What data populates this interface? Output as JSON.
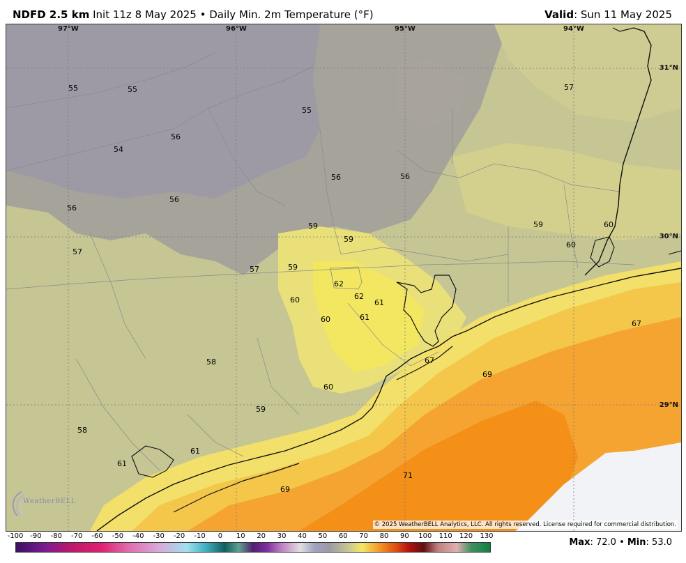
{
  "header": {
    "title_bold": "NDFD 2.5 km",
    "title_rest": " Init 11z 8 May 2025 • Daily Min. 2m Temperature (°F)",
    "valid_label": "Valid",
    "valid_value": ": Sun 11 May 2025"
  },
  "map": {
    "longitude_labels": [
      "97°W",
      "96°W",
      "95°W",
      "94°W"
    ],
    "latitude_labels": [
      "31°N",
      "30°N",
      "29°N"
    ],
    "temperature_labels": [
      "55",
      "55",
      "55",
      "57",
      "56",
      "54",
      "56",
      "56",
      "56",
      "56",
      "59",
      "59",
      "57",
      "57",
      "59",
      "59",
      "60",
      "60",
      "62",
      "62",
      "61",
      "60",
      "61",
      "60",
      "60",
      "67",
      "58",
      "67",
      "69",
      "60",
      "59",
      "58",
      "61",
      "61",
      "71",
      "69"
    ],
    "copyright": "© 2025 WeatherBELL Analytics, LLC. All rights reserved. License required for commercial distribution.",
    "logo": "WeatherBELL"
  },
  "colorbar": {
    "ticks": [
      "-100",
      "-90",
      "-80",
      "-70",
      "-60",
      "-50",
      "-40",
      "-30",
      "-20",
      "-10",
      "0",
      "10",
      "20",
      "30",
      "40",
      "50",
      "60",
      "70",
      "80",
      "90",
      "100",
      "110",
      "120",
      "130"
    ]
  },
  "stats": {
    "max_label": "Max",
    "max_value": ": 72.0 • ",
    "min_label": "Min",
    "min_value": ": 53.0"
  }
}
